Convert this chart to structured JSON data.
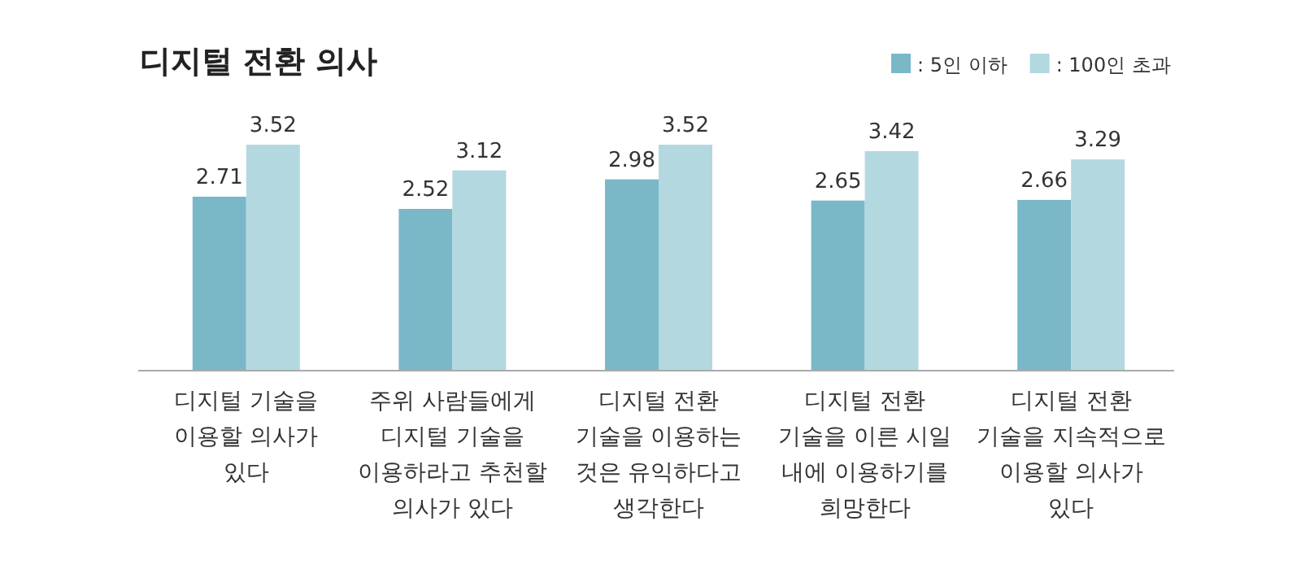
{
  "chart_data": {
    "type": "bar",
    "title": "디지털 전환 의사",
    "categories": [
      "디지털 기술을 이용할 의사가 있다",
      "주위 사람들에게 디지털 기술을 이용하라고 추천할 의사가 있다",
      "디지털 전환 기술을 이용하는 것은 유익하다고 생각한다",
      "디지털 전환 기술을 이른 시일 내에 이용하기를 희망한다",
      "디지털 전환 기술을 지속적으로 이용할 의사가 있다"
    ],
    "series": [
      {
        "name": ": 5인 이하",
        "color": "#7ab8c8",
        "values": [
          2.71,
          2.52,
          2.98,
          2.65,
          2.66
        ]
      },
      {
        "name": ": 100인 초과",
        "color": "#b3d8e0",
        "values": [
          3.52,
          3.12,
          3.52,
          3.42,
          3.29
        ]
      }
    ],
    "data_labels": true,
    "legend": "top right"
  }
}
